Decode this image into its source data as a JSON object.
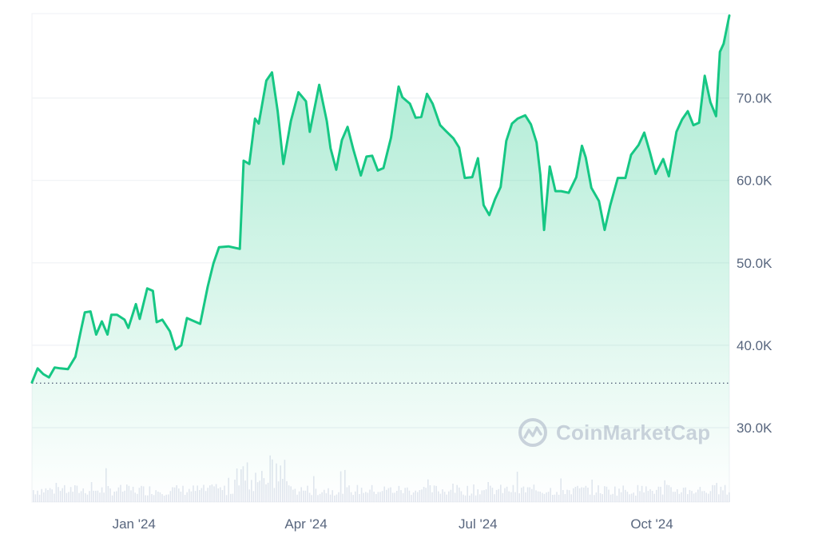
{
  "watermark": {
    "text": "CoinMarketCap",
    "icon": "coinmarketcap-logo-icon"
  },
  "colors": {
    "line": "#16c784",
    "area_top": "#16c784",
    "grid": "#eff2f5",
    "baseline": "#58667e",
    "volume": "#cfd6e4",
    "text": "#58667e"
  },
  "chart_data": {
    "type": "area",
    "title": "",
    "xlabel": "",
    "ylabel": "",
    "x_range": [
      "2023-11-08",
      "2024-11-11"
    ],
    "ylim": [
      20000,
      80000
    ],
    "y_ticks": [
      {
        "value": 30000,
        "label": "30.0K"
      },
      {
        "value": 40000,
        "label": "40.0K"
      },
      {
        "value": 50000,
        "label": "50.0K"
      },
      {
        "value": 60000,
        "label": "60.0K"
      },
      {
        "value": 70000,
        "label": "70.0K"
      }
    ],
    "x_ticks": [
      {
        "date": "2024-01-01",
        "label": "Jan '24"
      },
      {
        "date": "2024-04-01",
        "label": "Apr '24"
      },
      {
        "date": "2024-07-01",
        "label": "Jul '24"
      },
      {
        "date": "2024-10-01",
        "label": "Oct '24"
      }
    ],
    "baseline_value": 35400,
    "grid": true,
    "legend": "none",
    "series": [
      {
        "points": [
          [
            "2023-11-08",
            35500
          ],
          [
            "2023-11-11",
            37200
          ],
          [
            "2023-11-14",
            36500
          ],
          [
            "2023-11-17",
            36100
          ],
          [
            "2023-11-20",
            37300
          ],
          [
            "2023-11-23",
            37200
          ],
          [
            "2023-11-27",
            37100
          ],
          [
            "2023-12-01",
            38600
          ],
          [
            "2023-12-04",
            41900
          ],
          [
            "2023-12-06",
            44000
          ],
          [
            "2023-12-09",
            44100
          ],
          [
            "2023-12-12",
            41300
          ],
          [
            "2023-12-15",
            42900
          ],
          [
            "2023-12-18",
            41300
          ],
          [
            "2023-12-20",
            43700
          ],
          [
            "2023-12-23",
            43700
          ],
          [
            "2023-12-27",
            43100
          ],
          [
            "2023-12-29",
            42100
          ],
          [
            "2024-01-02",
            45000
          ],
          [
            "2024-01-04",
            43200
          ],
          [
            "2024-01-08",
            46900
          ],
          [
            "2024-01-11",
            46600
          ],
          [
            "2024-01-13",
            42800
          ],
          [
            "2024-01-16",
            43100
          ],
          [
            "2024-01-20",
            41700
          ],
          [
            "2024-01-23",
            39500
          ],
          [
            "2024-01-26",
            40000
          ],
          [
            "2024-01-29",
            43300
          ],
          [
            "2024-02-01",
            43000
          ],
          [
            "2024-02-05",
            42600
          ],
          [
            "2024-02-09",
            47100
          ],
          [
            "2024-02-12",
            49900
          ],
          [
            "2024-02-15",
            51900
          ],
          [
            "2024-02-20",
            52000
          ],
          [
            "2024-02-26",
            51700
          ],
          [
            "2024-02-28",
            62400
          ],
          [
            "2024-03-02",
            62000
          ],
          [
            "2024-03-05",
            67500
          ],
          [
            "2024-03-07",
            66900
          ],
          [
            "2024-03-11",
            72100
          ],
          [
            "2024-03-14",
            73100
          ],
          [
            "2024-03-17",
            68400
          ],
          [
            "2024-03-20",
            62000
          ],
          [
            "2024-03-24",
            67200
          ],
          [
            "2024-03-28",
            70700
          ],
          [
            "2024-04-01",
            69600
          ],
          [
            "2024-04-03",
            65900
          ],
          [
            "2024-04-08",
            71600
          ],
          [
            "2024-04-12",
            67200
          ],
          [
            "2024-04-14",
            63900
          ],
          [
            "2024-04-17",
            61300
          ],
          [
            "2024-04-20",
            64900
          ],
          [
            "2024-04-23",
            66500
          ],
          [
            "2024-04-26",
            63800
          ],
          [
            "2024-04-30",
            60600
          ],
          [
            "2024-05-03",
            62900
          ],
          [
            "2024-05-06",
            63000
          ],
          [
            "2024-05-09",
            61200
          ],
          [
            "2024-05-12",
            61500
          ],
          [
            "2024-05-16",
            65200
          ],
          [
            "2024-05-20",
            71400
          ],
          [
            "2024-05-22",
            70100
          ],
          [
            "2024-05-26",
            69300
          ],
          [
            "2024-05-29",
            67600
          ],
          [
            "2024-06-01",
            67700
          ],
          [
            "2024-06-04",
            70500
          ],
          [
            "2024-06-07",
            69300
          ],
          [
            "2024-06-11",
            66700
          ],
          [
            "2024-06-14",
            66000
          ],
          [
            "2024-06-18",
            65100
          ],
          [
            "2024-06-21",
            64000
          ],
          [
            "2024-06-24",
            60300
          ],
          [
            "2024-06-28",
            60400
          ],
          [
            "2024-07-01",
            62700
          ],
          [
            "2024-07-04",
            57000
          ],
          [
            "2024-07-07",
            55800
          ],
          [
            "2024-07-10",
            57700
          ],
          [
            "2024-07-13",
            59200
          ],
          [
            "2024-07-16",
            64800
          ],
          [
            "2024-07-19",
            66900
          ],
          [
            "2024-07-22",
            67500
          ],
          [
            "2024-07-26",
            67900
          ],
          [
            "2024-07-29",
            66800
          ],
          [
            "2024-08-01",
            64600
          ],
          [
            "2024-08-03",
            60700
          ],
          [
            "2024-08-05",
            54000
          ],
          [
            "2024-08-08",
            61700
          ],
          [
            "2024-08-11",
            58700
          ],
          [
            "2024-08-14",
            58700
          ],
          [
            "2024-08-18",
            58500
          ],
          [
            "2024-08-22",
            60400
          ],
          [
            "2024-08-25",
            64200
          ],
          [
            "2024-08-27",
            62800
          ],
          [
            "2024-08-30",
            59100
          ],
          [
            "2024-09-03",
            57500
          ],
          [
            "2024-09-06",
            54000
          ],
          [
            "2024-09-09",
            57000
          ],
          [
            "2024-09-13",
            60300
          ],
          [
            "2024-09-17",
            60300
          ],
          [
            "2024-09-20",
            63100
          ],
          [
            "2024-09-24",
            64300
          ],
          [
            "2024-09-27",
            65800
          ],
          [
            "2024-09-30",
            63400
          ],
          [
            "2024-10-03",
            60800
          ],
          [
            "2024-10-07",
            62600
          ],
          [
            "2024-10-10",
            60500
          ],
          [
            "2024-10-14",
            65900
          ],
          [
            "2024-10-17",
            67400
          ],
          [
            "2024-10-20",
            68400
          ],
          [
            "2024-10-23",
            66700
          ],
          [
            "2024-10-26",
            67000
          ],
          [
            "2024-10-29",
            72700
          ],
          [
            "2024-11-01",
            69500
          ],
          [
            "2024-11-04",
            67800
          ],
          [
            "2024-11-06",
            75600
          ],
          [
            "2024-11-08",
            76600
          ],
          [
            "2024-11-11",
            80000
          ]
        ]
      }
    ],
    "volume_note_unlabeled": true
  }
}
